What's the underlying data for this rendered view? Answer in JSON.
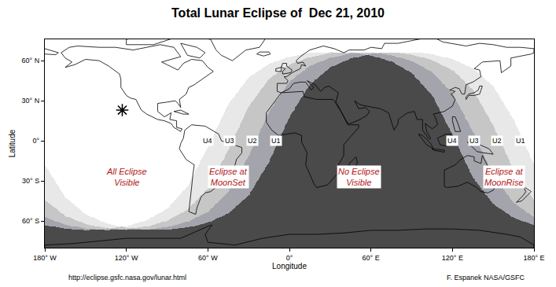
{
  "chart_data": {
    "type": "map",
    "title": "Total Lunar Eclipse of  Dec 21, 2010",
    "x_label": "Longitude",
    "y_label": "Latitude",
    "xlim": [
      -180,
      180
    ],
    "xticks": [
      {
        "value": -180,
        "label": "180° W"
      },
      {
        "value": -120,
        "label": "120° W"
      },
      {
        "value": -60,
        "label": "60° W"
      },
      {
        "value": 0,
        "label": "0°"
      },
      {
        "value": 60,
        "label": "60° E"
      },
      {
        "value": 120,
        "label": "120° E"
      },
      {
        "value": 180,
        "label": "180° E"
      }
    ],
    "ylim": [
      -80,
      76
    ],
    "yticks": [
      {
        "value": -60,
        "label": "60° S"
      },
      {
        "value": -30,
        "label": "30° S"
      },
      {
        "value": 0,
        "label": "0°"
      },
      {
        "value": 30,
        "label": "30° N"
      },
      {
        "value": 60,
        "label": "60° N"
      }
    ],
    "grid": false,
    "colors": [
      "#ffffff",
      "#e8e8e8",
      "#c6c6c6",
      "#a4a4ac",
      "#4a4a4a"
    ],
    "x": [
      -180,
      -165,
      -150,
      -135,
      -120,
      -105,
      -90,
      -75,
      -60,
      -45,
      -30,
      -15,
      0,
      15,
      30,
      45,
      60,
      75,
      90,
      105,
      120,
      135,
      150,
      165,
      180
    ],
    "series": [
      {
        "name": "U1",
        "label_at": [
          [
            -10,
            0
          ],
          [
            170,
            0
          ]
        ],
        "values": [
          -17.8,
          -42.1,
          -54.9,
          -61.6,
          -65.0,
          -66.4,
          -66.4,
          -64.8,
          -61.2,
          -54.3,
          -40.9,
          -15.7,
          17.8,
          42.1,
          54.9,
          61.6,
          65.0,
          66.4,
          66.4,
          64.8,
          61.2,
          54.3,
          40.9,
          15.7,
          -17.8
        ]
      },
      {
        "name": "U2",
        "label_at": [
          [
            -27,
            0
          ],
          [
            153,
            0
          ]
        ],
        "values": [
          -44.3,
          -56.1,
          -62.2,
          -65.3,
          -66.5,
          -66.3,
          -64.5,
          -60.5,
          -53.0,
          -38.3,
          -11.4,
          21.9,
          44.3,
          56.1,
          62.2,
          65.3,
          66.5,
          66.3,
          64.5,
          60.5,
          53.0,
          38.3,
          11.4,
          -21.9,
          -44.3
        ]
      },
      {
        "name": "U3",
        "label_at": [
          [
            -44,
            0
          ],
          [
            136,
            0
          ]
        ],
        "values": [
          -57.1,
          -62.7,
          -65.5,
          -66.6,
          -66.1,
          -64.1,
          -59.8,
          -51.5,
          -35.5,
          -6.9,
          25.7,
          46.4,
          57.1,
          62.7,
          65.5,
          66.6,
          66.1,
          64.1,
          59.8,
          51.5,
          35.5,
          6.9,
          -25.7,
          -46.4,
          -57.1
        ]
      },
      {
        "name": "U4",
        "label_at": [
          [
            -60,
            0
          ],
          [
            120,
            0
          ]
        ],
        "values": [
          -63.0,
          -65.7,
          -66.6,
          -66.0,
          -63.9,
          -59.4,
          -50.8,
          -34.0,
          -4.6,
          27.5,
          47.3,
          57.6,
          63.0,
          65.7,
          66.6,
          66.0,
          63.9,
          59.4,
          50.8,
          34.0,
          4.6,
          -27.5,
          -47.3,
          -57.6,
          -63.0
        ]
      }
    ],
    "regions": [
      {
        "lines": [
          "All Eclipse",
          "Visible"
        ],
        "x": -120,
        "y": -27,
        "color": "#b01818"
      },
      {
        "lines": [
          "Eclipse at",
          "MoonSet"
        ],
        "x": -45,
        "y": -27,
        "color": "#b01818"
      },
      {
        "lines": [
          "No Eclipse",
          "Visible"
        ],
        "x": 51,
        "y": -27,
        "color": "#b01818"
      },
      {
        "lines": [
          "Eclipse at",
          "MoonRise"
        ],
        "x": 158,
        "y": -27,
        "color": "#b01818"
      }
    ],
    "points": [
      {
        "x": -123,
        "y": 23,
        "marker": "asterisk"
      }
    ],
    "source": "http://eclipse.gsfc.nasa.gov/lunar.html",
    "credit": "F. Espanek NASA/GSFC",
    "coastlines": [
      {
        "lon": [
          -168,
          -162,
          -156,
          -140,
          -128,
          -115,
          -95,
          -85,
          -80,
          -94,
          -90,
          -82,
          -78,
          -72,
          -64,
          -60,
          -56,
          -66,
          -70,
          -74,
          -76,
          -81,
          -80,
          -82,
          -84,
          -90,
          -97,
          -97,
          -92,
          -87,
          -88,
          -83,
          -83,
          -79,
          -80,
          -85,
          -87,
          -92,
          -97,
          -105,
          -109,
          -113,
          -117,
          -120,
          -124,
          -124,
          -125,
          -133,
          -140,
          -150,
          -158,
          -165,
          -160,
          -165,
          -168
        ],
        "lat": [
          66,
          70,
          71,
          70,
          70,
          68,
          72,
          70,
          63,
          59,
          57,
          53,
          58,
          61,
          60,
          55,
          52,
          45,
          42,
          40,
          35,
          31,
          25,
          28,
          30,
          29,
          28,
          22,
          18,
          21,
          16,
          15,
          10,
          9,
          7,
          10,
          13,
          15,
          16,
          20,
          23,
          31,
          32,
          34,
          40,
          46,
          50,
          56,
          60,
          61,
          57,
          55,
          59,
          62,
          66
        ]
      },
      {
        "lon": [
          -73,
          -60,
          -35,
          -20,
          -18,
          -22,
          -32,
          -42,
          -50,
          -54,
          -58,
          -73
        ],
        "lat": [
          78,
          82,
          83,
          82,
          76,
          70,
          68,
          60,
          64,
          68,
          76,
          78
        ]
      },
      {
        "lon": [
          -80,
          -68,
          -62,
          -66,
          -75,
          -80
        ],
        "lat": [
          73,
          70,
          66,
          62,
          64,
          73
        ]
      },
      {
        "lon": [
          -120,
          -95,
          -70,
          -85,
          -100,
          -120,
          -120
        ],
        "lat": [
          76,
          80,
          82,
          77,
          72,
          72,
          76
        ]
      },
      {
        "lon": [
          -85,
          -80,
          -74,
          -78,
          -85
        ],
        "lat": [
          22,
          23,
          20,
          20,
          22
        ]
      },
      {
        "lon": [
          -77,
          -72,
          -62,
          -52,
          -50,
          -44,
          -35,
          -35,
          -39,
          -41,
          -48,
          -53,
          -58,
          -62,
          -65,
          -68,
          -69,
          -74,
          -73,
          -72,
          -71,
          -70,
          -76,
          -81,
          -80,
          -78,
          -77
        ],
        "lat": [
          8,
          12,
          11,
          5,
          0,
          -2,
          -5,
          -9,
          -14,
          -22,
          -26,
          -34,
          -38,
          -39,
          -42,
          -50,
          -55,
          -53,
          -45,
          -35,
          -25,
          -18,
          -14,
          -6,
          -2,
          2,
          8
        ]
      },
      {
        "lon": [
          -17,
          -6,
          10,
          11,
          20,
          32,
          35,
          39,
          43,
          51,
          51,
          44,
          40,
          40,
          35,
          35,
          28,
          20,
          18,
          12,
          13,
          9,
          9,
          4,
          -8,
          -13,
          -17,
          -17
        ],
        "lat": [
          21,
          36,
          37,
          33,
          31,
          31,
          28,
          20,
          12,
          12,
          10,
          2,
          -3,
          -11,
          -20,
          -25,
          -33,
          -35,
          -32,
          -18,
          -9,
          -1,
          4,
          6,
          4,
          8,
          14,
          21
        ]
      },
      {
        "lon": [
          44,
          47,
          50,
          49,
          44,
          44
        ],
        "lat": [
          -25,
          -25,
          -16,
          -12,
          -17,
          -25
        ]
      },
      {
        "lon": [
          -9,
          -9,
          -6,
          0,
          3,
          8,
          12,
          16,
          18,
          13,
          19,
          23,
          26,
          29,
          36,
          35,
          34,
          38,
          43,
          45,
          52,
          57,
          59,
          56,
          51,
          48,
          52,
          57,
          62,
          67,
          73,
          77,
          80,
          80,
          87,
          92,
          94,
          98,
          98,
          103,
          104,
          101,
          100,
          105,
          109,
          108,
          106,
          110,
          114,
          120,
          122,
          119,
          122,
          118,
          122,
          125,
          127,
          129,
          130,
          135,
          141,
          140,
          136,
          142,
          155,
          156,
          163,
          163,
          178,
          180,
          180,
          170,
          160,
          150,
          140,
          130,
          120,
          113,
          105,
          95,
          80,
          70,
          68,
          60,
          55,
          44,
          40,
          33,
          25,
          15,
          8,
          5,
          6,
          10,
          12,
          9,
          8,
          4,
          2,
          -2,
          -4,
          -1,
          -2,
          -9
        ],
        "lat": [
          43,
          37,
          36,
          39,
          43,
          44,
          44,
          38,
          40,
          45,
          42,
          37,
          40,
          41,
          36,
          32,
          28,
          22,
          13,
          13,
          16,
          19,
          22,
          25,
          24,
          30,
          27,
          26,
          25,
          24,
          21,
          8,
          13,
          16,
          21,
          22,
          16,
          16,
          8,
          1,
          2,
          7,
          13,
          9,
          12,
          16,
          20,
          21,
          22,
          26,
          31,
          35,
          37,
          38,
          40,
          39,
          35,
          35,
          42,
          44,
          48,
          53,
          54,
          59,
          60,
          51,
          56,
          62,
          65,
          66,
          69,
          70,
          70,
          72,
          73,
          71,
          73,
          74,
          78,
          76,
          73,
          73,
          69,
          70,
          68,
          68,
          66,
          69,
          71,
          68,
          63,
          60,
          58,
          59,
          56,
          57,
          54,
          52,
          51,
          48,
          48,
          45,
          43,
          43
        ]
      },
      {
        "lon": [
          -180,
          -172,
          -170,
          -175,
          -180
        ],
        "lat": [
          65,
          64.5,
          66,
          67.5,
          69
        ]
      },
      {
        "lon": [
          -5,
          1,
          2,
          -2,
          -2,
          -5,
          -6,
          -3,
          -5,
          -5
        ],
        "lat": [
          50,
          51,
          53,
          56,
          58,
          58,
          55,
          54,
          52,
          50
        ]
      },
      {
        "lon": [
          -10,
          -6,
          -6,
          -10,
          -10
        ],
        "lat": [
          52,
          52,
          55,
          54,
          52
        ]
      },
      {
        "lon": [
          -24,
          -22,
          -15,
          -14,
          -19,
          -24
        ],
        "lat": [
          65,
          66.5,
          66.5,
          65,
          63.5,
          65
        ]
      },
      {
        "lon": [
          130,
          132,
          136,
          140,
          141,
          142,
          140,
          139,
          136,
          132,
          130,
          130
        ],
        "lat": [
          31,
          34,
          34,
          35,
          38,
          41,
          41,
          38,
          36,
          35,
          33,
          31
        ]
      },
      {
        "lon": [
          120,
          122,
          124,
          126,
          122,
          120,
          120
        ],
        "lat": [
          18,
          18,
          13,
          7,
          7,
          15,
          18
        ]
      },
      {
        "lon": [
          95,
          98,
          104,
          106,
          101,
          95
        ],
        "lat": [
          5,
          4,
          -2,
          -6,
          -3,
          5
        ]
      },
      {
        "lon": [
          109,
          115,
          119,
          118,
          116,
          111,
          109
        ],
        "lat": [
          2,
          5,
          5,
          1,
          -4,
          -3,
          2
        ]
      },
      {
        "lon": [
          105,
          114,
          114,
          106,
          105
        ],
        "lat": [
          -6,
          -7,
          -8.5,
          -7,
          -6
        ]
      },
      {
        "lon": [
          131,
          138,
          147,
          150,
          143,
          138,
          131
        ],
        "lat": [
          -1,
          -2,
          -6,
          -10,
          -9,
          -8,
          -1
        ]
      },
      {
        "lon": [
          114,
          114,
          116,
          124,
          131,
          138,
          141,
          146,
          150,
          153,
          153,
          146,
          142,
          141,
          136,
          136,
          131,
          126,
          122,
          114
        ],
        "lat": [
          -22,
          -34,
          -35,
          -34,
          -31,
          -35,
          -38,
          -39,
          -37,
          -31,
          -25,
          -19,
          -11,
          -17,
          -15,
          -12,
          -11,
          -14,
          -18,
          -22
        ]
      },
      {
        "lon": [
          172,
          178,
          175,
          171,
          167,
          172,
          174,
          172
        ],
        "lat": [
          -34,
          -38,
          -41,
          -45,
          -46,
          -41,
          -38,
          -34
        ]
      },
      {
        "lon": [
          -180,
          -160,
          -140,
          -120,
          -100,
          -80,
          -60,
          -57,
          -62,
          -60,
          -40,
          -20,
          0,
          20,
          40,
          60,
          80,
          100,
          120,
          140,
          160,
          170,
          180,
          180,
          -180,
          -180
        ],
        "lat": [
          -78,
          -77,
          -75,
          -73,
          -73,
          -73,
          -64,
          -63,
          -70,
          -76,
          -78,
          -73,
          -70,
          -70,
          -69,
          -67,
          -67,
          -66,
          -66,
          -67,
          -70,
          -72,
          -78,
          -90,
          -90,
          -78
        ]
      }
    ]
  }
}
